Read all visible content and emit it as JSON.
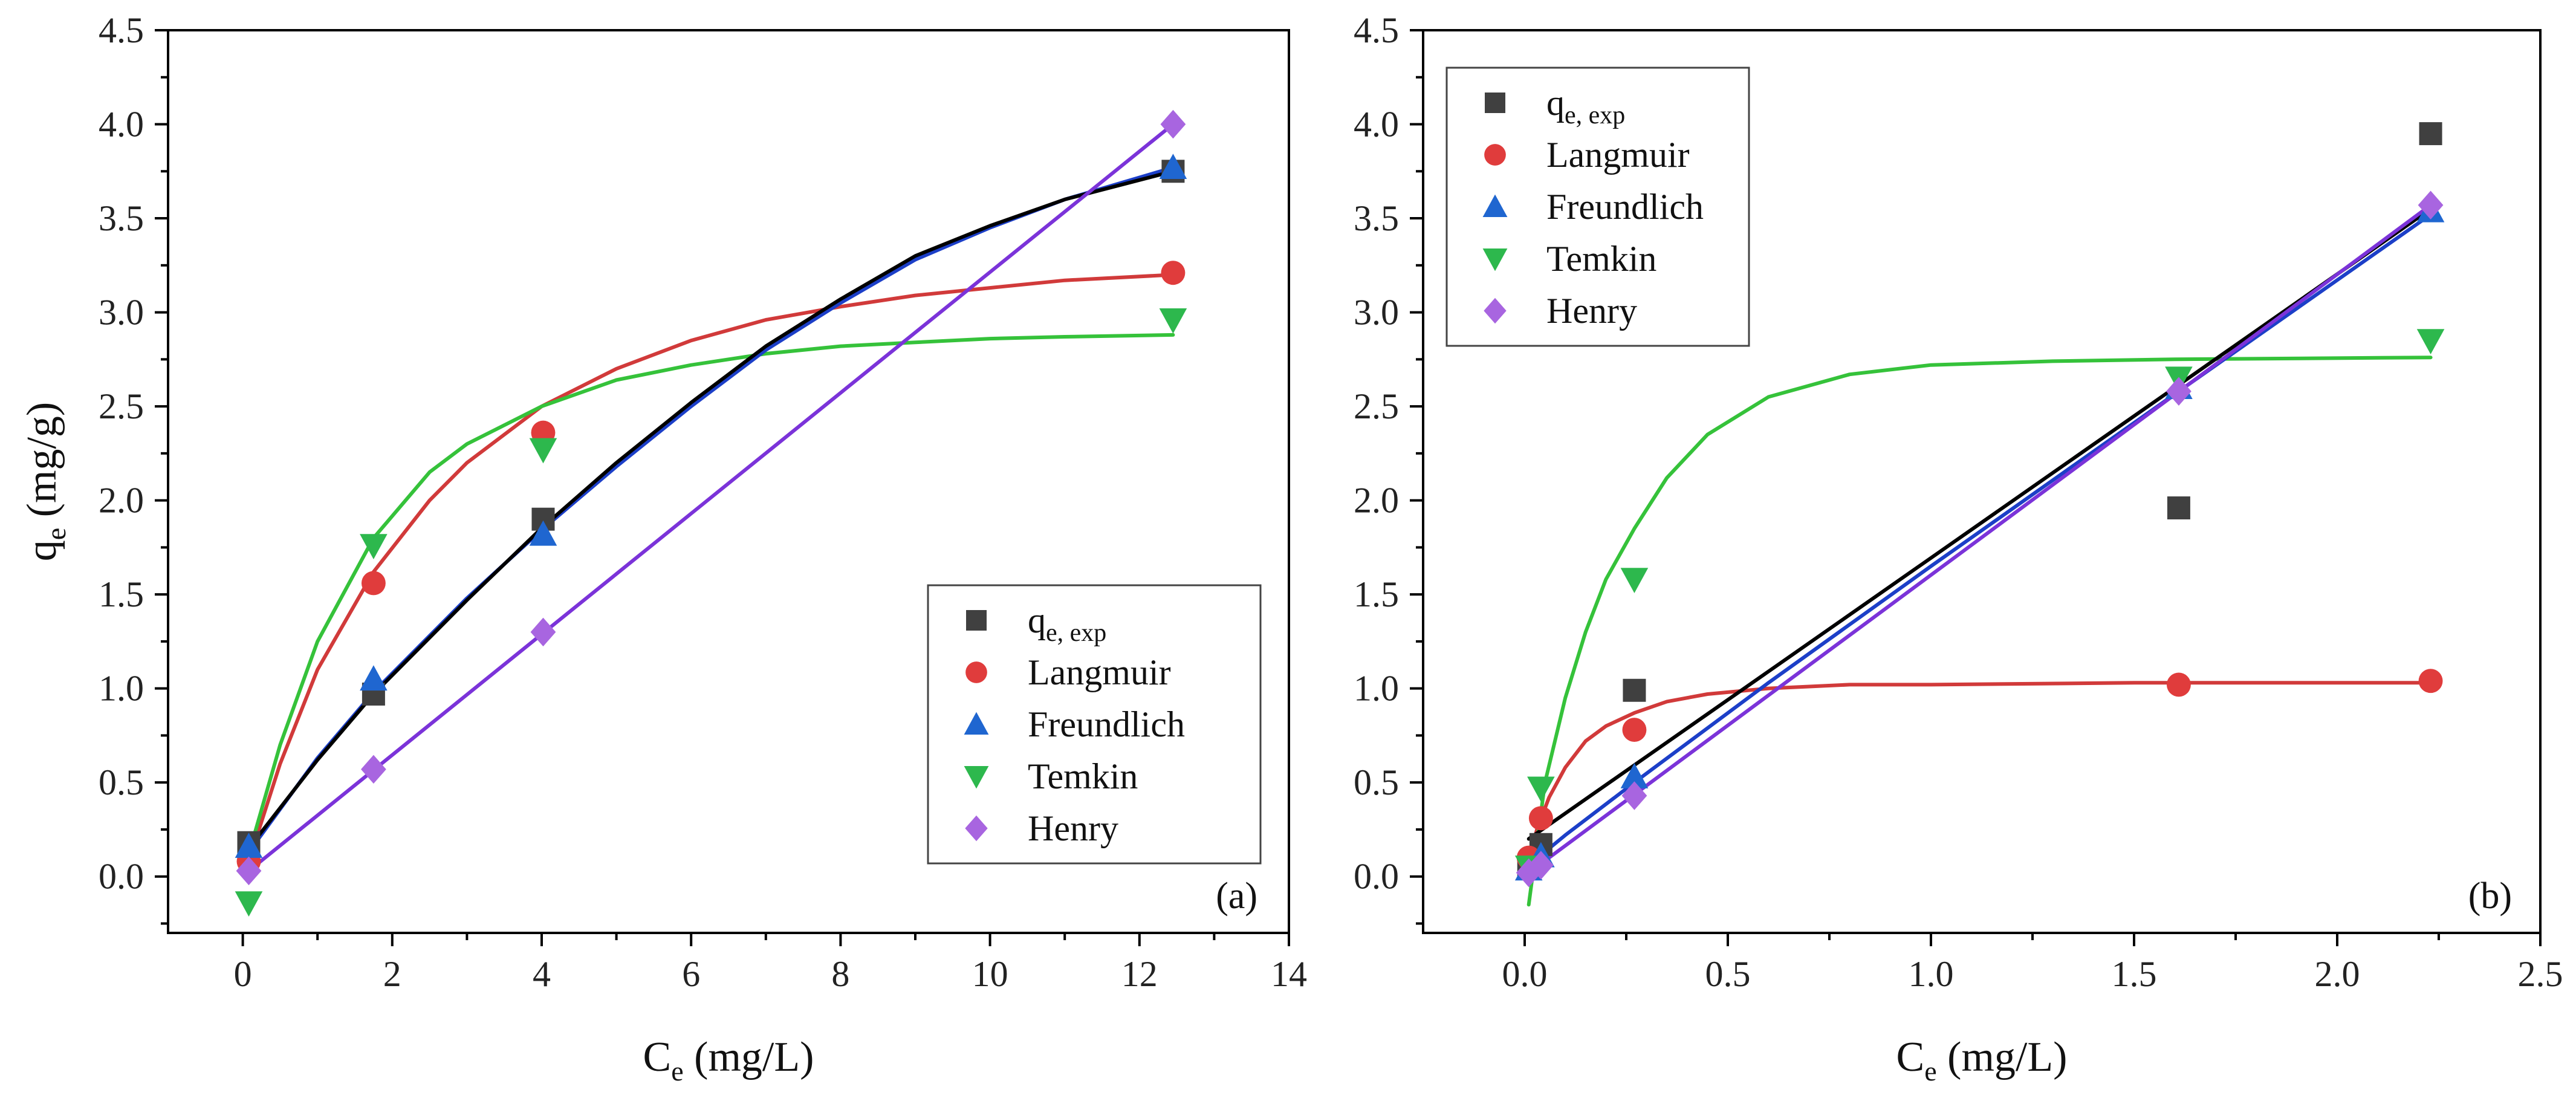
{
  "colors": {
    "exp": "#404040",
    "langmuir": "#e03c3c",
    "freundlich": "#1f66d0",
    "temkin": "#2db84d",
    "henry": "#a865e0",
    "fit_black": "#000000",
    "fit_langmuir": "#d13a3a",
    "fit_freundlich": "#1c3fc8",
    "fit_temkin": "#35c23a",
    "fit_henry": "#7b33d9"
  },
  "chart_data": [
    {
      "id": "a",
      "type": "scatter",
      "panel_label": "(a)",
      "xlabel": "C",
      "xlabel_sub": "e",
      "xlabel_unit": " (mg/L)",
      "ylabel": "q",
      "ylabel_sub": "e",
      "ylabel_unit": " (mg/g)",
      "xlim": [
        -1,
        14
      ],
      "ylim": [
        -0.3,
        4.5
      ],
      "xticks": [
        "0",
        "2",
        "4",
        "6",
        "8",
        "10",
        "12",
        "14"
      ],
      "xtick_values": [
        0,
        2,
        4,
        6,
        8,
        10,
        12,
        14
      ],
      "yticks": [
        "0.0",
        "0.5",
        "1.0",
        "1.5",
        "2.0",
        "2.5",
        "3.0",
        "3.5",
        "4.0",
        "4.5"
      ],
      "ytick_values": [
        0,
        0.5,
        1,
        1.5,
        2,
        2.5,
        3,
        3.5,
        4,
        4.5
      ],
      "legend": {
        "position": "bottom-right",
        "entries": [
          {
            "key": "exp",
            "label": "q",
            "sub": "e, exp"
          },
          {
            "key": "langmuir",
            "label": "Langmuir"
          },
          {
            "key": "freundlich",
            "label": "Freundlich"
          },
          {
            "key": "temkin",
            "label": "Temkin"
          },
          {
            "key": "henry",
            "label": "Henry"
          }
        ]
      },
      "series": [
        {
          "name": "q_e,exp",
          "key": "exp",
          "marker": "square",
          "x": [
            0.08,
            1.75,
            4.02,
            12.45
          ],
          "y": [
            0.18,
            0.97,
            1.9,
            3.75
          ]
        },
        {
          "name": "Langmuir",
          "key": "langmuir",
          "marker": "circle",
          "x": [
            0.08,
            1.75,
            4.02,
            12.45
          ],
          "y": [
            0.08,
            1.56,
            2.36,
            3.21
          ]
        },
        {
          "name": "Freundlich",
          "key": "freundlich",
          "marker": "triangle-up",
          "x": [
            0.08,
            1.75,
            4.02,
            12.45
          ],
          "y": [
            0.16,
            1.05,
            1.82,
            3.77
          ]
        },
        {
          "name": "Temkin",
          "key": "temkin",
          "marker": "triangle-down",
          "x": [
            0.08,
            1.75,
            4.02,
            12.45
          ],
          "y": [
            -0.14,
            1.76,
            2.27,
            2.96
          ]
        },
        {
          "name": "Henry",
          "key": "henry",
          "marker": "diamond",
          "x": [
            0.08,
            1.75,
            4.02,
            12.45
          ],
          "y": [
            0.03,
            0.57,
            1.3,
            4.0
          ]
        }
      ],
      "fit_curves": [
        {
          "key": "fit_langmuir",
          "x": [
            0.08,
            0.5,
            1.0,
            1.75,
            2.5,
            3.0,
            4.0,
            5.0,
            6.0,
            7.0,
            8.0,
            9.0,
            10.0,
            11.0,
            12.45
          ],
          "y": [
            0.08,
            0.6,
            1.1,
            1.62,
            2.0,
            2.2,
            2.5,
            2.7,
            2.85,
            2.96,
            3.03,
            3.09,
            3.13,
            3.17,
            3.2
          ]
        },
        {
          "key": "fit_temkin",
          "x": [
            0.08,
            0.5,
            1.0,
            1.75,
            2.5,
            3.0,
            4.0,
            5.0,
            6.0,
            7.0,
            8.0,
            9.0,
            10.0,
            11.0,
            12.45
          ],
          "y": [
            0.12,
            0.7,
            1.25,
            1.8,
            2.15,
            2.3,
            2.5,
            2.64,
            2.72,
            2.78,
            2.82,
            2.84,
            2.86,
            2.87,
            2.88
          ]
        },
        {
          "key": "fit_freundlich",
          "x": [
            0.08,
            1.0,
            1.75,
            3.0,
            4.02,
            5.0,
            6.0,
            7.0,
            8.0,
            9.0,
            10.0,
            11.0,
            12.45
          ],
          "y": [
            0.13,
            0.63,
            0.98,
            1.48,
            1.85,
            2.18,
            2.5,
            2.8,
            3.05,
            3.28,
            3.45,
            3.6,
            3.77
          ]
        },
        {
          "key": "fit_black",
          "x": [
            0.08,
            1.0,
            1.75,
            3.0,
            4.02,
            5.0,
            6.0,
            7.0,
            8.0,
            9.0,
            10.0,
            11.0,
            12.45
          ],
          "y": [
            0.15,
            0.62,
            0.97,
            1.47,
            1.86,
            2.2,
            2.52,
            2.82,
            3.07,
            3.3,
            3.46,
            3.6,
            3.75
          ]
        },
        {
          "key": "fit_henry",
          "x": [
            0.08,
            12.45
          ],
          "y": [
            0.03,
            4.0
          ]
        }
      ]
    },
    {
      "id": "b",
      "type": "scatter",
      "panel_label": "(b)",
      "xlabel": "C",
      "xlabel_sub": "e",
      "xlabel_unit": " (mg/L)",
      "ylabel": "",
      "xlim": [
        -0.25,
        2.5
      ],
      "ylim": [
        -0.3,
        4.5
      ],
      "xticks": [
        "0.0",
        "0.5",
        "1.0",
        "1.5",
        "2.0",
        "2.5"
      ],
      "xtick_values": [
        0,
        0.5,
        1,
        1.5,
        2,
        2.5
      ],
      "yticks": [
        "0.0",
        "0.5",
        "1.0",
        "1.5",
        "2.0",
        "2.5",
        "3.0",
        "3.5",
        "4.0",
        "4.5"
      ],
      "ytick_values": [
        0,
        0.5,
        1,
        1.5,
        2,
        2.5,
        3,
        3.5,
        4,
        4.5
      ],
      "legend": {
        "position": "top-left",
        "entries": [
          {
            "key": "exp",
            "label": "q",
            "sub": "e, exp"
          },
          {
            "key": "langmuir",
            "label": "Langmuir"
          },
          {
            "key": "freundlich",
            "label": "Freundlich"
          },
          {
            "key": "temkin",
            "label": "Temkin"
          },
          {
            "key": "henry",
            "label": "Henry"
          }
        ]
      },
      "series": [
        {
          "name": "q_e,exp",
          "key": "exp",
          "marker": "square",
          "x": [
            0.01,
            0.04,
            0.27,
            1.61,
            2.23
          ],
          "y": [
            0.05,
            0.17,
            0.99,
            1.96,
            3.95
          ]
        },
        {
          "name": "Langmuir",
          "key": "langmuir",
          "marker": "circle",
          "x": [
            0.01,
            0.04,
            0.27,
            1.61,
            2.23
          ],
          "y": [
            0.1,
            0.31,
            0.78,
            1.02,
            1.04
          ]
        },
        {
          "name": "Freundlich",
          "key": "freundlich",
          "marker": "triangle-up",
          "x": [
            0.01,
            0.04,
            0.27,
            1.61,
            2.23
          ],
          "y": [
            0.04,
            0.11,
            0.53,
            2.6,
            3.54
          ]
        },
        {
          "name": "Temkin",
          "key": "temkin",
          "marker": "triangle-down",
          "x": [
            0.01,
            0.04,
            0.27,
            1.61,
            2.23
          ],
          "y": [
            0.05,
            0.47,
            1.58,
            2.65,
            2.85
          ]
        },
        {
          "name": "Henry",
          "key": "henry",
          "marker": "diamond",
          "x": [
            0.01,
            0.04,
            0.27,
            1.61,
            2.23
          ],
          "y": [
            0.02,
            0.06,
            0.43,
            2.58,
            3.57
          ]
        }
      ],
      "fit_curves": [
        {
          "key": "fit_langmuir",
          "x": [
            0.0,
            0.03,
            0.06,
            0.1,
            0.15,
            0.2,
            0.27,
            0.35,
            0.45,
            0.6,
            0.8,
            1.0,
            1.5,
            2.23
          ],
          "y": [
            0.0,
            0.25,
            0.42,
            0.58,
            0.72,
            0.8,
            0.87,
            0.93,
            0.97,
            1.0,
            1.02,
            1.02,
            1.03,
            1.03
          ]
        },
        {
          "key": "fit_temkin",
          "x": [
            0.01,
            0.05,
            0.1,
            0.15,
            0.2,
            0.27,
            0.35,
            0.45,
            0.6,
            0.8,
            1.0,
            1.3,
            1.6,
            2.23
          ],
          "y": [
            -0.15,
            0.5,
            0.95,
            1.3,
            1.58,
            1.85,
            2.12,
            2.35,
            2.55,
            2.67,
            2.72,
            2.74,
            2.75,
            2.76
          ]
        },
        {
          "key": "fit_black",
          "x": [
            0.01,
            2.23
          ],
          "y": [
            0.2,
            3.55
          ]
        },
        {
          "key": "fit_freundlich",
          "x": [
            0.01,
            0.1,
            0.27,
            0.6,
            1.0,
            1.61,
            2.23
          ],
          "y": [
            0.06,
            0.22,
            0.5,
            1.03,
            1.65,
            2.58,
            3.52
          ]
        },
        {
          "key": "fit_henry",
          "x": [
            0.01,
            2.23
          ],
          "y": [
            0.02,
            3.57
          ]
        }
      ]
    }
  ]
}
